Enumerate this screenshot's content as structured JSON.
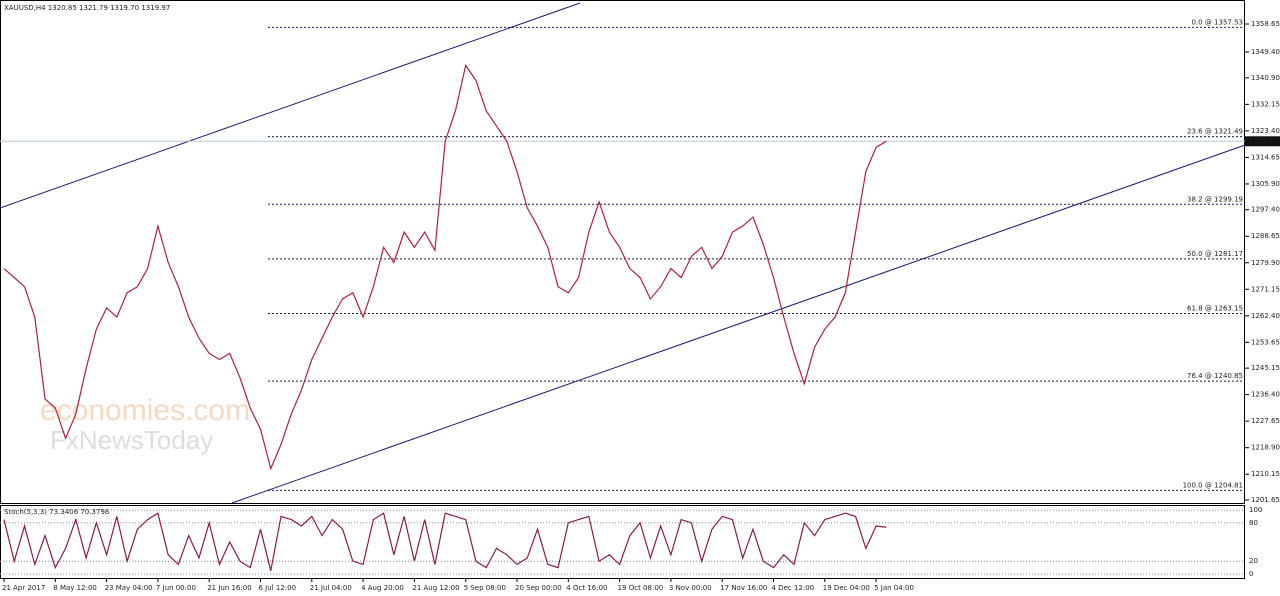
{
  "chart_data": [
    {
      "type": "line",
      "title": "XAUUSD,H4  1320.85 1321.79 1319.70 1319.97",
      "color": "#b0203a",
      "watermark": [
        "economies.com",
        "FxNewsToday"
      ],
      "categories": [
        "21 Apr 2017",
        null,
        null,
        null,
        null,
        "8 May 12:00",
        null,
        null,
        null,
        null,
        "23 May 04:00",
        null,
        null,
        null,
        null,
        "7 Jun 00:00",
        null,
        null,
        null,
        null,
        "21 Jun 16:00",
        null,
        null,
        null,
        null,
        "6 Jul 12:00",
        null,
        null,
        null,
        null,
        "21 Jul 04:00",
        null,
        null,
        null,
        null,
        "4 Aug 20:00",
        null,
        null,
        null,
        null,
        "21 Aug 12:00",
        null,
        null,
        null,
        null,
        "5 Sep 08:00",
        null,
        null,
        null,
        null,
        "20 Sep 00:00",
        null,
        null,
        null,
        null,
        "4 Oct 16:00",
        null,
        null,
        null,
        null,
        "19 Oct 08:00",
        null,
        null,
        null,
        null,
        "3 Nov 00:00",
        null,
        null,
        null,
        null,
        "17 Nov 16:00",
        null,
        null,
        null,
        null,
        "4 Dec 12:00",
        null,
        null,
        null,
        null,
        "19 Dec 04:00",
        null,
        null,
        null,
        null,
        "5 Jan 04:00",
        null
      ],
      "values": [
        1278,
        1275,
        1272,
        1262,
        1235,
        1232,
        1222,
        1230,
        1245,
        1258,
        1265,
        1262,
        1270,
        1272,
        1278,
        1292,
        1280,
        1272,
        1262,
        1255,
        1250,
        1248,
        1250,
        1242,
        1232,
        1225,
        1212,
        1220,
        1230,
        1238,
        1248,
        1255,
        1262,
        1268,
        1270,
        1262,
        1272,
        1285,
        1280,
        1290,
        1285,
        1290,
        1284,
        1320,
        1330,
        1345,
        1340,
        1330,
        1325,
        1320,
        1310,
        1298,
        1292,
        1285,
        1272,
        1270,
        1275,
        1290,
        1300,
        1290,
        1285,
        1278,
        1275,
        1268,
        1272,
        1278,
        1275,
        1282,
        1285,
        1278,
        1282,
        1290,
        1292,
        1295,
        1286,
        1275,
        1262,
        1250,
        1240,
        1252,
        1258,
        1262,
        1270,
        1290,
        1310,
        1318,
        1320
      ],
      "ylim": [
        1200.66,
        1366.57
      ],
      "yticks": [
        {
          "value": 1358.65,
          "label": "1358.65"
        },
        {
          "value": 1349.4,
          "label": "1349.40"
        },
        {
          "value": 1340.9,
          "label": "1340.90"
        },
        {
          "value": 1332.15,
          "label": "1332.15"
        },
        {
          "value": 1323.4,
          "label": "1323.40"
        },
        {
          "value": 1314.65,
          "label": "1314.65"
        },
        {
          "value": 1305.9,
          "label": "1305.90"
        },
        {
          "value": 1297.4,
          "label": "1297.40"
        },
        {
          "value": 1288.65,
          "label": "1288.65"
        },
        {
          "value": 1279.9,
          "label": "1279.90"
        },
        {
          "value": 1271.15,
          "label": "1271.15"
        },
        {
          "value": 1262.4,
          "label": "1262.40"
        },
        {
          "value": 1253.65,
          "label": "1253.65"
        },
        {
          "value": 1245.15,
          "label": "1245.15"
        },
        {
          "value": 1236.4,
          "label": "1236.40"
        },
        {
          "value": 1227.65,
          "label": "1227.65"
        },
        {
          "value": 1218.9,
          "label": "1218.90"
        },
        {
          "value": 1210.15,
          "label": "1210.15"
        },
        {
          "value": 1201.65,
          "label": "1201.65"
        }
      ],
      "last_price": 1319.97,
      "fib_levels": [
        {
          "value": 1357.53,
          "label": "0.0 @ 1357.53"
        },
        {
          "value": 1321.49,
          "label": "23.6 @ 1321.49"
        },
        {
          "value": 1299.19,
          "label": "38.2 @ 1299.19"
        },
        {
          "value": 1281.17,
          "label": "50.0 @ 1281.17"
        },
        {
          "value": 1263.15,
          "label": "61.8 @ 1263.15"
        },
        {
          "value": 1240.85,
          "label": "76.4 @ 1240.85"
        },
        {
          "value": 1204.81,
          "label": "100.0 @ 1204.81"
        }
      ]
    },
    {
      "type": "line",
      "title": "Stoch(5,3,3) 73.3406 70.3798",
      "color": "#8b1a4a",
      "values": [
        85,
        20,
        75,
        15,
        60,
        10,
        40,
        85,
        25,
        80,
        30,
        90,
        20,
        70,
        85,
        95,
        30,
        15,
        60,
        25,
        80,
        15,
        50,
        20,
        10,
        70,
        5,
        90,
        85,
        75,
        90,
        60,
        85,
        70,
        20,
        15,
        85,
        95,
        30,
        90,
        20,
        85,
        15,
        95,
        90,
        85,
        20,
        10,
        40,
        30,
        15,
        25,
        70,
        15,
        10,
        80,
        85,
        90,
        20,
        30,
        15,
        60,
        80,
        25,
        75,
        30,
        85,
        80,
        20,
        70,
        90,
        85,
        25,
        70,
        20,
        10,
        30,
        15,
        80,
        60,
        85,
        90,
        95,
        90,
        40,
        75,
        73
      ],
      "ylim": [
        0,
        100
      ],
      "yticks": [
        0,
        20,
        80,
        100
      ]
    }
  ]
}
